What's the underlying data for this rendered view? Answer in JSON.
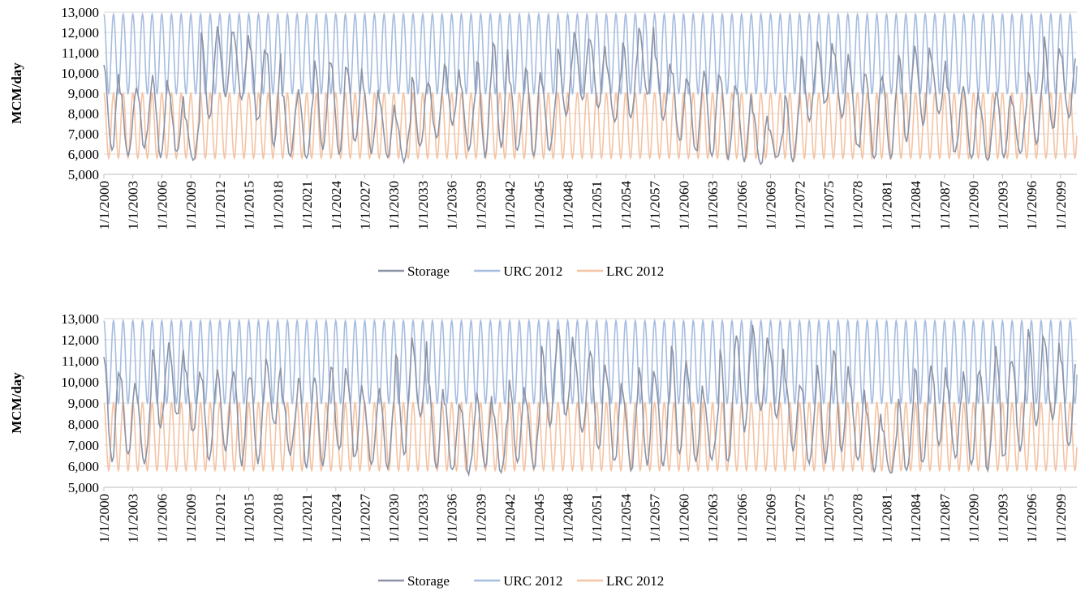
{
  "colors": {
    "storage": "#8c93a6",
    "urc": "#a6bde0",
    "lrc": "#f4c3a3",
    "grid": "#d9d9d9",
    "axis": "#bfbfbf"
  },
  "chart_data": [
    {
      "type": "line",
      "title": "",
      "xlabel": "",
      "ylabel": "MCM/day",
      "ylim": [
        5000,
        13000
      ],
      "yticks": [
        "5,000",
        "6,000",
        "7,000",
        "8,000",
        "9,000",
        "10,000",
        "11,000",
        "12,000",
        "13,000"
      ],
      "xlim": [
        2000,
        2100.7
      ],
      "x_tick_labels": [
        "1/1/2000",
        "1/1/2003",
        "1/1/2006",
        "1/1/2009",
        "1/1/2012",
        "1/1/2015",
        "1/1/2018",
        "1/1/2021",
        "1/1/2024",
        "1/1/2027",
        "1/1/2030",
        "1/1/2033",
        "1/1/2036",
        "1/1/2039",
        "1/1/2042",
        "1/1/2045",
        "1/1/2048",
        "1/1/2051",
        "1/1/2054",
        "1/1/2057",
        "1/1/2060",
        "1/1/2063",
        "1/1/2066",
        "1/1/2069",
        "1/1/2072",
        "1/1/2075",
        "1/1/2078",
        "1/1/2081",
        "1/1/2084",
        "1/1/2087",
        "1/1/2090",
        "1/1/2093",
        "1/1/2096",
        "1/1/2099"
      ],
      "grid": true,
      "legend_position": "bottom",
      "series": [
        {
          "name": "Storage",
          "annual_min_max": [
            [
              6200,
              10400
            ],
            [
              5900,
              9100
            ],
            [
              6300,
              9400
            ],
            [
              5800,
              9900
            ],
            [
              6000,
              9200
            ],
            [
              5700,
              7800
            ],
            [
              7600,
              12000
            ],
            [
              8600,
              12300
            ],
            [
              8700,
              12000
            ],
            [
              7500,
              11500
            ],
            [
              6400,
              11200
            ],
            [
              5900,
              9000
            ],
            [
              5800,
              9200
            ],
            [
              6200,
              10800
            ],
            [
              5900,
              10500
            ],
            [
              6600,
              10400
            ],
            [
              6000,
              9300
            ],
            [
              5700,
              8600
            ],
            [
              5600,
              7800
            ],
            [
              6200,
              9800
            ],
            [
              6800,
              9600
            ],
            [
              7400,
              10500
            ],
            [
              6200,
              9400
            ],
            [
              5800,
              10800
            ],
            [
              6300,
              11700
            ],
            [
              6000,
              9700
            ],
            [
              5900,
              10400
            ],
            [
              6100,
              9500
            ],
            [
              7800,
              11200
            ],
            [
              8500,
              12200
            ],
            [
              8300,
              11600
            ],
            [
              7600,
              10400
            ],
            [
              7800,
              11500
            ],
            [
              8800,
              12400
            ],
            [
              7700,
              10800
            ],
            [
              6600,
              10100
            ],
            [
              6000,
              9800
            ],
            [
              5900,
              10300
            ],
            [
              5700,
              9800
            ],
            [
              5600,
              9200
            ],
            [
              5500,
              8200
            ],
            [
              5800,
              7300
            ],
            [
              5600,
              8900
            ],
            [
              7600,
              10800
            ],
            [
              8400,
              11600
            ],
            [
              7800,
              11100
            ],
            [
              6200,
              10300
            ],
            [
              5800,
              9900
            ],
            [
              5800,
              9800
            ],
            [
              6600,
              10900
            ],
            [
              7400,
              11400
            ],
            [
              7900,
              10800
            ],
            [
              6000,
              9300
            ],
            [
              5800,
              9400
            ],
            [
              5700,
              8500
            ],
            [
              5800,
              9200
            ],
            [
              6000,
              8600
            ],
            [
              6400,
              10100
            ],
            [
              7000,
              11800
            ],
            [
              7800,
              10900
            ]
          ]
        },
        {
          "name": "URC 2012",
          "range": [
            9000,
            12900
          ],
          "cycles_per_year": 1
        },
        {
          "name": "LRC 2012",
          "range": [
            5800,
            9000
          ],
          "cycles_per_year": 1
        }
      ]
    },
    {
      "type": "line",
      "title": "",
      "xlabel": "",
      "ylabel": "MCM/day",
      "ylim": [
        5000,
        13000
      ],
      "yticks": [
        "5,000",
        "6,000",
        "7,000",
        "8,000",
        "9,000",
        "10,000",
        "11,000",
        "12,000",
        "13,000"
      ],
      "xlim": [
        2000,
        2100.7
      ],
      "x_tick_labels": [
        "1/1/2000",
        "1/1/2003",
        "1/1/2006",
        "1/1/2009",
        "1/1/2012",
        "1/1/2015",
        "1/1/2018",
        "1/1/2021",
        "1/1/2024",
        "1/1/2027",
        "1/1/2030",
        "1/1/2033",
        "1/1/2036",
        "1/1/2039",
        "1/1/2042",
        "1/1/2045",
        "1/1/2048",
        "1/1/2051",
        "1/1/2054",
        "1/1/2057",
        "1/1/2060",
        "1/1/2063",
        "1/1/2066",
        "1/1/2069",
        "1/1/2072",
        "1/1/2075",
        "1/1/2078",
        "1/1/2081",
        "1/1/2084",
        "1/1/2087",
        "1/1/2090",
        "1/1/2093",
        "1/1/2096",
        "1/1/2099"
      ],
      "grid": true,
      "legend_position": "bottom",
      "series": [
        {
          "name": "Storage",
          "annual_min_max": [
            [
              6200,
              11200
            ],
            [
              6400,
              10400
            ],
            [
              6100,
              9600
            ],
            [
              7800,
              11600
            ],
            [
              8300,
              11900
            ],
            [
              7600,
              10600
            ],
            [
              6300,
              10200
            ],
            [
              6600,
              10700
            ],
            [
              6000,
              10500
            ],
            [
              6100,
              10400
            ],
            [
              7900,
              11100
            ],
            [
              6500,
              9500
            ],
            [
              5900,
              10300
            ],
            [
              6000,
              10200
            ],
            [
              6700,
              10800
            ],
            [
              6300,
              10300
            ],
            [
              6100,
              9300
            ],
            [
              5900,
              9700
            ],
            [
              6500,
              11300
            ],
            [
              8200,
              12100
            ],
            [
              5900,
              10000
            ],
            [
              5700,
              9100
            ],
            [
              5600,
              8700
            ],
            [
              5900,
              9500
            ],
            [
              5700,
              8700
            ],
            [
              6000,
              10100
            ],
            [
              5900,
              9200
            ],
            [
              7800,
              11900
            ],
            [
              8300,
              12500
            ],
            [
              7600,
              11300
            ],
            [
              6800,
              11400
            ],
            [
              6200,
              10300
            ],
            [
              5800,
              9500
            ],
            [
              5900,
              10900
            ],
            [
              6000,
              10200
            ],
            [
              6400,
              11700
            ],
            [
              6100,
              10400
            ],
            [
              6300,
              9200
            ],
            [
              6000,
              11800
            ],
            [
              7600,
              12200
            ],
            [
              8500,
              12700
            ],
            [
              8300,
              11900
            ],
            [
              6700,
              10300
            ],
            [
              6000,
              9700
            ],
            [
              6100,
              10800
            ],
            [
              6600,
              11500
            ],
            [
              6300,
              9900
            ],
            [
              5700,
              8600
            ],
            [
              5600,
              7800
            ],
            [
              5700,
              9200
            ],
            [
              6000,
              10700
            ],
            [
              7000,
              11000
            ],
            [
              6400,
              9800
            ],
            [
              6100,
              10500
            ],
            [
              5800,
              10500
            ],
            [
              6300,
              11700
            ],
            [
              6700,
              11200
            ],
            [
              7900,
              12500
            ],
            [
              8100,
              12000
            ],
            [
              7000,
              11100
            ]
          ]
        },
        {
          "name": "URC 2012",
          "range": [
            9000,
            12900
          ],
          "cycles_per_year": 1
        },
        {
          "name": "LRC 2012",
          "range": [
            5800,
            9000
          ],
          "cycles_per_year": 1
        }
      ]
    }
  ]
}
